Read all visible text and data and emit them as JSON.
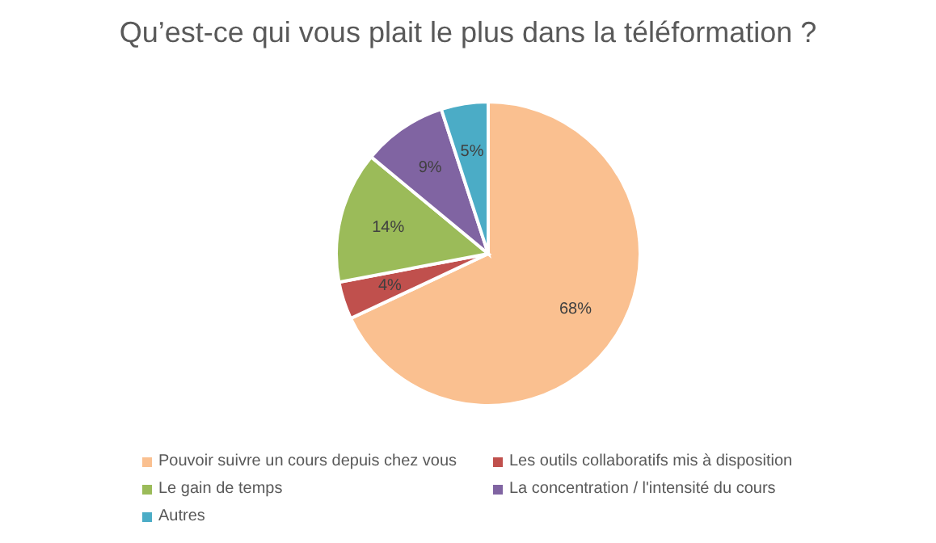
{
  "chart_data": {
    "type": "pie",
    "title": "Qu’est-ce qui vous plait le plus dans la téléformation ?",
    "categories": [
      "Pouvoir suivre un cours depuis chez vous",
      "Les outils collaboratifs mis à disposition",
      "Le gain de temps",
      "La concentration / l'intensité du cours",
      "Autres"
    ],
    "values": [
      68,
      4,
      14,
      9,
      5
    ],
    "colors": [
      "#fac090",
      "#c0504d",
      "#9bbb59",
      "#8064a2",
      "#4bacc6"
    ],
    "value_labels": [
      "68%",
      "4%",
      "14%",
      "9%",
      "5%"
    ],
    "legend": "bottom"
  }
}
